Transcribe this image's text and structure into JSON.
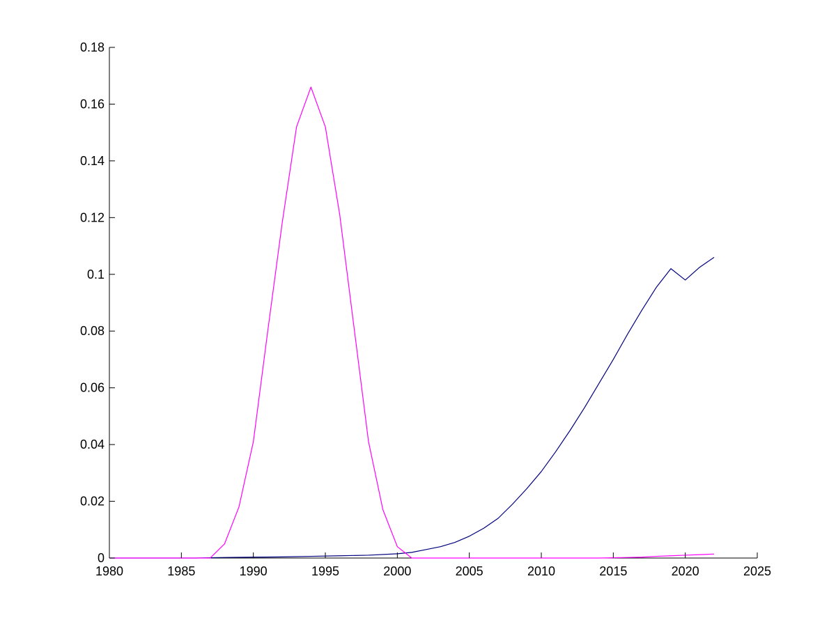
{
  "chart_data": {
    "type": "line",
    "title": "",
    "xlabel": "",
    "ylabel": "",
    "xlim": [
      1980,
      2025
    ],
    "ylim": [
      0,
      0.18
    ],
    "xticks": [
      1980,
      1985,
      1990,
      1995,
      2000,
      2005,
      2010,
      2015,
      2020,
      2025
    ],
    "xtick_labels": [
      "1980",
      "1985",
      "1990",
      "1995",
      "2000",
      "2005",
      "2010",
      "2015",
      "2020",
      "2025"
    ],
    "yticks": [
      0,
      0.02,
      0.04,
      0.06,
      0.08,
      0.1,
      0.12,
      0.14,
      0.16,
      0.18
    ],
    "ytick_labels": [
      "0",
      "0.02",
      "0.04",
      "0.06",
      "0.08",
      "0.1",
      "0.12",
      "0.14",
      "0.16",
      "0.18"
    ],
    "grid": false,
    "legend": "none",
    "series": [
      {
        "color": "#ff00ff",
        "points": [
          [
            1980,
            0
          ],
          [
            1981,
            0
          ],
          [
            1982,
            0
          ],
          [
            1983,
            0
          ],
          [
            1984,
            0
          ],
          [
            1985,
            0
          ],
          [
            1986,
            0
          ],
          [
            1987,
            0
          ],
          [
            1988,
            0.005
          ],
          [
            1989,
            0.018
          ],
          [
            1990,
            0.041
          ],
          [
            1991,
            0.08
          ],
          [
            1992,
            0.118
          ],
          [
            1993,
            0.152
          ],
          [
            1994,
            0.166
          ],
          [
            1995,
            0.152
          ],
          [
            1996,
            0.121
          ],
          [
            1997,
            0.081
          ],
          [
            1998,
            0.041
          ],
          [
            1999,
            0.017
          ],
          [
            2000,
            0.004
          ],
          [
            2001,
            0
          ],
          [
            2002,
            0
          ],
          [
            2003,
            0
          ],
          [
            2004,
            0
          ],
          [
            2005,
            0
          ],
          [
            2006,
            0
          ],
          [
            2007,
            0
          ],
          [
            2008,
            0
          ],
          [
            2009,
            0
          ],
          [
            2010,
            0
          ],
          [
            2011,
            0
          ],
          [
            2012,
            0
          ],
          [
            2013,
            0
          ],
          [
            2014,
            0
          ],
          [
            2015,
            0.0001
          ],
          [
            2016,
            0.0002
          ],
          [
            2017,
            0.0003
          ],
          [
            2018,
            0.0006
          ],
          [
            2019,
            0.0008
          ],
          [
            2020,
            0.001
          ],
          [
            2021,
            0.0012
          ],
          [
            2022,
            0.0014
          ]
        ]
      },
      {
        "color": "#000080",
        "points": [
          [
            1980,
            0
          ],
          [
            1982,
            0
          ],
          [
            1984,
            0
          ],
          [
            1986,
            0
          ],
          [
            1988,
            0.0002
          ],
          [
            1990,
            0.0003
          ],
          [
            1992,
            0.0004
          ],
          [
            1994,
            0.0006
          ],
          [
            1996,
            0.0008
          ],
          [
            1998,
            0.001
          ],
          [
            2000,
            0.0015
          ],
          [
            2001,
            0.002
          ],
          [
            2002,
            0.003
          ],
          [
            2003,
            0.004
          ],
          [
            2004,
            0.0055
          ],
          [
            2005,
            0.0077
          ],
          [
            2006,
            0.0105
          ],
          [
            2007,
            0.014
          ],
          [
            2008,
            0.019
          ],
          [
            2009,
            0.0245
          ],
          [
            2010,
            0.0305
          ],
          [
            2011,
            0.0375
          ],
          [
            2012,
            0.045
          ],
          [
            2013,
            0.053
          ],
          [
            2014,
            0.0615
          ],
          [
            2015,
            0.07
          ],
          [
            2016,
            0.079
          ],
          [
            2017,
            0.0875
          ],
          [
            2018,
            0.0955
          ],
          [
            2019,
            0.102
          ],
          [
            2020,
            0.098
          ],
          [
            2021,
            0.1025
          ],
          [
            2022,
            0.106
          ]
        ]
      }
    ]
  }
}
